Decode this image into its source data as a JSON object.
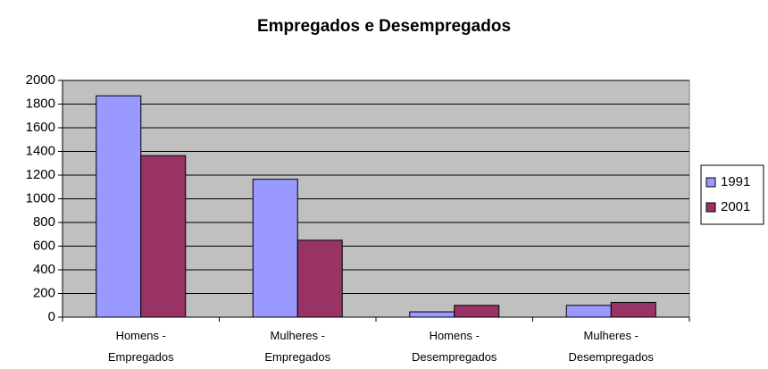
{
  "chart_data": {
    "type": "bar",
    "title": "Empregados e Desempregados",
    "categories": [
      "Homens -\nEmpregados",
      "Mulheres -\nEmpregados",
      "Homens -\nDesempregados",
      "Mulheres -\nDesempregados"
    ],
    "series": [
      {
        "name": "1991",
        "color": "#9999ff",
        "values": [
          1870,
          1165,
          45,
          100
        ]
      },
      {
        "name": "2001",
        "color": "#993366",
        "values": [
          1365,
          650,
          100,
          125
        ]
      }
    ],
    "ylim": [
      0,
      2000
    ],
    "yticks": [
      0,
      200,
      400,
      600,
      800,
      1000,
      1200,
      1400,
      1600,
      1800,
      2000
    ],
    "grid": true,
    "legend": "right"
  }
}
